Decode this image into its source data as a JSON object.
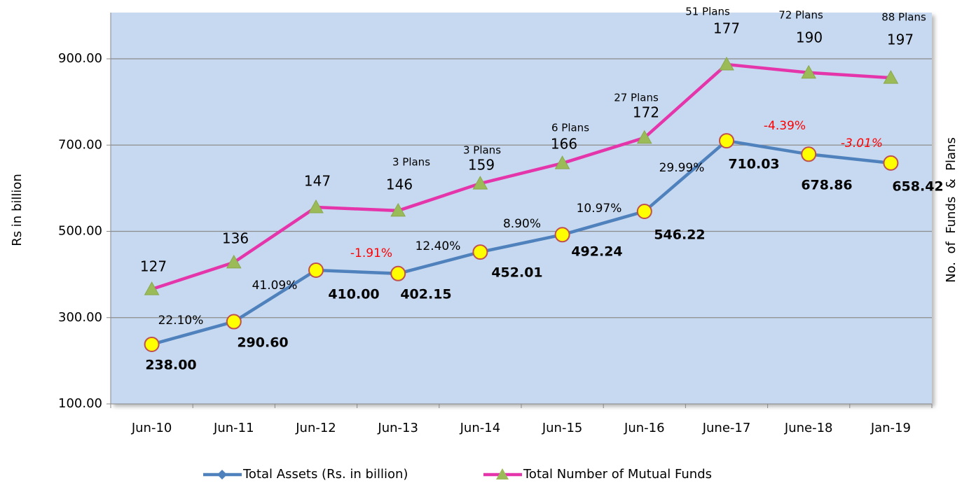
{
  "chart_data": {
    "type": "line",
    "y_label": "Rs in billion",
    "y2_label": "No.  of  Funds  &  Plans",
    "categories": [
      "Jun-10",
      "Jun-11",
      "Jun-12",
      "Jun-13",
      "Jun-14",
      "Jun-15",
      "Jun-16",
      "June-17",
      "June-18",
      "Jan-19"
    ],
    "ylim": [
      100,
      1000
    ],
    "yticks": [
      {
        "value": 100,
        "label": "100.00"
      },
      {
        "value": 300,
        "label": "300.00"
      },
      {
        "value": 500,
        "label": "500.00"
      },
      {
        "value": 700,
        "label": "700.00"
      },
      {
        "value": 900,
        "label": "900.00"
      }
    ],
    "grid": true,
    "series": [
      {
        "name": "Total Assets (Rs. in billion)",
        "color": "#4f81bd",
        "values": [
          238,
          290.6,
          410,
          402.15,
          452.01,
          492.24,
          546.22,
          710.03,
          678.86,
          658.42
        ],
        "value_labels": [
          "238.00",
          "290.60",
          "410.00",
          "402.15",
          "452.01",
          "492.24",
          "546.22",
          "710.03",
          "678.86",
          "658.42"
        ]
      },
      {
        "name": "Total Number of Mutual Funds",
        "color": "#e535ab",
        "values": [
          366,
          428,
          556,
          548,
          611,
          658,
          717,
          887,
          868,
          856
        ],
        "fund_labels": [
          "127",
          "136",
          "147",
          "146",
          "159",
          "166",
          "172",
          "177",
          "190",
          "197"
        ],
        "plan_labels": [
          null,
          null,
          null,
          "3 Plans",
          "3 Plans",
          "6 Plans",
          "27 Plans",
          "51 Plans",
          "72 Plans",
          "88 Plans"
        ]
      }
    ],
    "growth_labels": [
      null,
      "22.10%",
      "41.09%",
      "-1.91%",
      "12.40%",
      "8.90%",
      "10.97%",
      "29.99%",
      "-4.39%",
      "-3.01%"
    ]
  }
}
